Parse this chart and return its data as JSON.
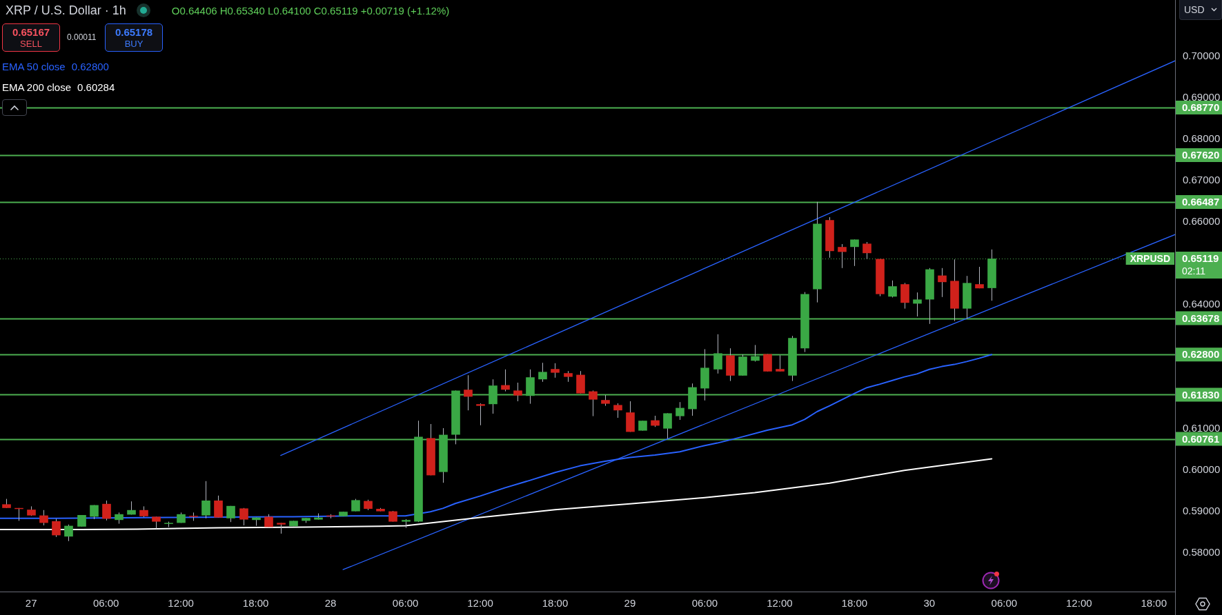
{
  "chart_data": {
    "type": "candlestick",
    "title": "XRP / U.S. Dollar · 1h",
    "subtitle": "O0.64406 H0.65340 L0.64100 C0.65119 +0.00719 (+1.12%)",
    "x": [
      "--09-26T22:00",
      "--09-26T23:00",
      "--09-27T00:00",
      "--09-27T01:00",
      "--09-27T02:00",
      "--09-27T03:00",
      "--09-27T04:00",
      "--09-27T05:00",
      "--09-27T06:00",
      "--09-27T07:00",
      "--09-27T08:00",
      "--09-27T09:00",
      "--09-27T10:00",
      "--09-27T11:00",
      "--09-27T12:00",
      "--09-27T13:00",
      "--09-27T14:00",
      "--09-27T15:00",
      "--09-27T16:00",
      "--09-27T17:00",
      "--09-27T18:00",
      "--09-27T19:00",
      "--09-27T20:00",
      "--09-27T21:00",
      "--09-27T22:00",
      "--09-27T23:00",
      "--09-28T00:00",
      "--09-28T01:00",
      "--09-28T02:00",
      "--09-28T03:00",
      "--09-28T04:00",
      "--09-28T05:00",
      "--09-28T06:00",
      "--09-28T07:00",
      "--09-28T08:00",
      "--09-28T09:00",
      "--09-28T10:00",
      "--09-28T11:00",
      "--09-28T12:00",
      "--09-28T13:00",
      "--09-28T14:00",
      "--09-28T15:00",
      "--09-28T16:00",
      "--09-28T17:00",
      "--09-28T18:00",
      "--09-28T19:00",
      "--09-28T20:00",
      "--09-28T21:00",
      "--09-28T22:00",
      "--09-28T23:00",
      "--09-29T00:00",
      "--09-29T01:00",
      "--09-29T02:00",
      "--09-29T03:00",
      "--09-29T04:00",
      "--09-29T05:00",
      "--09-29T06:00",
      "--09-29T07:00",
      "--09-29T08:00",
      "--09-29T09:00",
      "--09-29T10:00",
      "--09-29T11:00",
      "--09-29T12:00",
      "--09-29T13:00",
      "--09-29T14:00",
      "--09-29T15:00",
      "--09-29T16:00",
      "--09-29T17:00",
      "--09-29T18:00",
      "--09-29T19:00",
      "--09-29T20:00",
      "--09-29T21:00",
      "--09-29T22:00",
      "--09-29T23:00",
      "--09-30T00:00",
      "--09-30T01:00",
      "--09-30T02:00",
      "--09-30T03:00",
      "--09-30T04:00",
      "--09-30T05:00"
    ],
    "ohlc": [
      [
        0.5918,
        0.5931,
        0.5909,
        0.5909
      ],
      [
        0.5909,
        0.5909,
        0.5878,
        0.5907
      ],
      [
        0.5905,
        0.5913,
        0.589,
        0.5891
      ],
      [
        0.5891,
        0.5904,
        0.5867,
        0.5873
      ],
      [
        0.5877,
        0.5883,
        0.5839,
        0.5843
      ],
      [
        0.584,
        0.5869,
        0.5829,
        0.5866
      ],
      [
        0.5864,
        0.5892,
        0.5864,
        0.5892
      ],
      [
        0.5888,
        0.5916,
        0.5882,
        0.5916
      ],
      [
        0.5919,
        0.5927,
        0.5879,
        0.5883
      ],
      [
        0.588,
        0.5898,
        0.5871,
        0.5894
      ],
      [
        0.5893,
        0.5925,
        0.5893,
        0.5904
      ],
      [
        0.5904,
        0.5913,
        0.5887,
        0.5889
      ],
      [
        0.5888,
        0.5888,
        0.5859,
        0.5876
      ],
      [
        0.5872,
        0.5876,
        0.5863,
        0.5873
      ],
      [
        0.5873,
        0.5898,
        0.5873,
        0.5894
      ],
      [
        0.589,
        0.5898,
        0.5878,
        0.5889
      ],
      [
        0.5891,
        0.5974,
        0.5884,
        0.5927
      ],
      [
        0.5927,
        0.5939,
        0.5886,
        0.5886
      ],
      [
        0.5884,
        0.5914,
        0.5875,
        0.5914
      ],
      [
        0.5908,
        0.5909,
        0.5867,
        0.5881
      ],
      [
        0.588,
        0.5886,
        0.5866,
        0.5886
      ],
      [
        0.5888,
        0.5894,
        0.5863,
        0.5863
      ],
      [
        0.5873,
        0.5873,
        0.5847,
        0.5869
      ],
      [
        0.5865,
        0.5878,
        0.5865,
        0.5878
      ],
      [
        0.5878,
        0.5885,
        0.5873,
        0.5885
      ],
      [
        0.5881,
        0.5896,
        0.5881,
        0.5886
      ],
      [
        0.5891,
        0.5894,
        0.5884,
        0.589
      ],
      [
        0.5889,
        0.59,
        0.5889,
        0.59
      ],
      [
        0.5901,
        0.5931,
        0.5901,
        0.5928
      ],
      [
        0.5926,
        0.5929,
        0.5904,
        0.5907
      ],
      [
        0.5907,
        0.5909,
        0.5901,
        0.5901
      ],
      [
        0.5901,
        0.5902,
        0.5876,
        0.5876
      ],
      [
        0.5876,
        0.5882,
        0.5861,
        0.588
      ],
      [
        0.5876,
        0.612,
        0.5875,
        0.6081
      ],
      [
        0.6078,
        0.6112,
        0.5988,
        0.5988
      ],
      [
        0.5996,
        0.6102,
        0.597,
        0.6086
      ],
      [
        0.6086,
        0.6193,
        0.6063,
        0.6193
      ],
      [
        0.6195,
        0.623,
        0.6145,
        0.6178
      ],
      [
        0.616,
        0.6162,
        0.6109,
        0.6156
      ],
      [
        0.616,
        0.622,
        0.6137,
        0.6205
      ],
      [
        0.6206,
        0.6244,
        0.6191,
        0.6195
      ],
      [
        0.6193,
        0.6212,
        0.6167,
        0.6181
      ],
      [
        0.618,
        0.6244,
        0.6161,
        0.6225
      ],
      [
        0.622,
        0.626,
        0.6214,
        0.6238
      ],
      [
        0.6245,
        0.6259,
        0.6224,
        0.6236
      ],
      [
        0.6235,
        0.624,
        0.6214,
        0.6226
      ],
      [
        0.6231,
        0.624,
        0.6186,
        0.6186
      ],
      [
        0.6191,
        0.6193,
        0.6131,
        0.6171
      ],
      [
        0.617,
        0.6182,
        0.6156,
        0.6161
      ],
      [
        0.6158,
        0.6162,
        0.6127,
        0.6145
      ],
      [
        0.614,
        0.6167,
        0.6093,
        0.6093
      ],
      [
        0.6096,
        0.612,
        0.6096,
        0.612
      ],
      [
        0.6121,
        0.6132,
        0.6105,
        0.6108
      ],
      [
        0.6101,
        0.6138,
        0.6077,
        0.6138
      ],
      [
        0.6131,
        0.6165,
        0.6122,
        0.6151
      ],
      [
        0.6148,
        0.621,
        0.6132,
        0.6201
      ],
      [
        0.6198,
        0.6293,
        0.6169,
        0.6248
      ],
      [
        0.6244,
        0.6329,
        0.6234,
        0.6283
      ],
      [
        0.6278,
        0.6295,
        0.6216,
        0.6229
      ],
      [
        0.6229,
        0.628,
        0.6229,
        0.6275
      ],
      [
        0.6265,
        0.6303,
        0.6263,
        0.6276
      ],
      [
        0.6281,
        0.6281,
        0.6239,
        0.6239
      ],
      [
        0.6245,
        0.6278,
        0.6239,
        0.6239
      ],
      [
        0.6229,
        0.6325,
        0.6216,
        0.632
      ],
      [
        0.6295,
        0.6431,
        0.6286,
        0.6426
      ],
      [
        0.6438,
        0.6649,
        0.6406,
        0.6596
      ],
      [
        0.6605,
        0.6612,
        0.6514,
        0.653
      ],
      [
        0.654,
        0.6547,
        0.6489,
        0.6528
      ],
      [
        0.654,
        0.6558,
        0.6494,
        0.6558
      ],
      [
        0.6548,
        0.6552,
        0.6511,
        0.6525
      ],
      [
        0.6511,
        0.6511,
        0.6421,
        0.6426
      ],
      [
        0.642,
        0.6459,
        0.6418,
        0.6445
      ],
      [
        0.645,
        0.6453,
        0.6391,
        0.6405
      ],
      [
        0.6403,
        0.643,
        0.6372,
        0.6413
      ],
      [
        0.6413,
        0.6489,
        0.6354,
        0.6486
      ],
      [
        0.6471,
        0.6489,
        0.6419,
        0.6455
      ],
      [
        0.6458,
        0.651,
        0.6361,
        0.6391
      ],
      [
        0.6391,
        0.647,
        0.6367,
        0.6453
      ],
      [
        0.645,
        0.6492,
        0.644,
        0.644
      ],
      [
        0.64406,
        0.6534,
        0.641,
        0.65119
      ]
    ],
    "colors": [
      "#d0211b",
      "#d0211b",
      "#d0211b",
      "#d0211b",
      "#d0211b",
      "#3aa845",
      "#3aa845",
      "#3aa845",
      "#d0211b",
      "#3aa845",
      "#3aa845",
      "#d0211b",
      "#d0211b",
      "#3aa845",
      "#3aa845",
      "#d0211b",
      "#3aa845",
      "#d0211b",
      "#3aa845",
      "#d0211b",
      "#3aa845",
      "#d0211b",
      "#d0211b",
      "#3aa845",
      "#3aa845",
      "#3aa845",
      "#d0211b",
      "#3aa845",
      "#3aa845",
      "#d0211b",
      "#d0211b",
      "#d0211b",
      "#3aa845",
      "#3aa845",
      "#d0211b",
      "#3aa845",
      "#3aa845",
      "#d0211b",
      "#d0211b",
      "#3aa845",
      "#d0211b",
      "#d0211b",
      "#3aa845",
      "#3aa845",
      "#d0211b",
      "#d0211b",
      "#d0211b",
      "#d0211b",
      "#d0211b",
      "#d0211b",
      "#d0211b",
      "#3aa845",
      "#d0211b",
      "#3aa845",
      "#3aa845",
      "#3aa845",
      "#3aa845",
      "#3aa845",
      "#d0211b",
      "#3aa845",
      "#3aa845",
      "#d0211b",
      "#d0211b",
      "#3aa845",
      "#3aa845",
      "#3aa845",
      "#d0211b",
      "#d0211b",
      "#3aa845",
      "#d0211b",
      "#d0211b",
      "#3aa845",
      "#d0211b",
      "#3aa845",
      "#3aa845",
      "#d0211b",
      "#d0211b",
      "#3aa845",
      "#d0211b",
      "#3aa845"
    ],
    "series": [
      {
        "name": "EMA 50 close",
        "type": "line",
        "color": "#2962ff",
        "x": [
          "--09-26T21:30",
          "--09-27T02:00",
          "--09-27T11:00",
          "--09-27T20:00",
          "--09-27T21:00",
          "--09-28T02:00",
          "--09-28T06:00",
          "--09-28T08:00",
          "--09-28T09:00",
          "--09-28T10:00",
          "--09-28T12:00",
          "--09-28T14:00",
          "--09-28T16:00",
          "--09-28T18:00",
          "--09-28T20:00",
          "--09-28T22:00",
          "--09-29T00:00",
          "--09-29T02:00",
          "--09-29T04:00",
          "--09-29T06:00",
          "--09-29T07:00",
          "--09-29T09:00",
          "--09-29T11:00",
          "--09-29T13:00",
          "--09-29T14:00",
          "--09-29T15:00",
          "--09-29T16:00",
          "--09-29T17:00",
          "--09-29T18:00",
          "--09-29T19:00",
          "--09-29T20:00",
          "--09-29T21:00",
          "--09-29T22:00",
          "--09-29T23:00",
          "--09-30T00:00",
          "--09-30T01:00",
          "--09-30T02:00",
          "--09-30T03:00",
          "--09-30T04:00",
          "--09-30T05:00"
        ],
        "values": [
          0.5884,
          0.5884,
          0.5886,
          0.5888,
          0.5888,
          0.589,
          0.589,
          0.59,
          0.5908,
          0.592,
          0.5938,
          0.5958,
          0.5976,
          0.5995,
          0.6011,
          0.6022,
          0.6031,
          0.6037,
          0.6045,
          0.606,
          0.6066,
          0.6081,
          0.6097,
          0.611,
          0.6123,
          0.6142,
          0.6156,
          0.6171,
          0.6186,
          0.62,
          0.6208,
          0.6217,
          0.6226,
          0.6233,
          0.6244,
          0.6251,
          0.6256,
          0.6263,
          0.6271,
          0.628
        ]
      },
      {
        "name": "EMA 200 close",
        "type": "line",
        "color": "#ffffff",
        "x": [
          "--09-26T21:30",
          "--09-27T04:00",
          "--09-27T08:30",
          "--09-27T15:00",
          "--09-27T22:00",
          "--09-28T04:00",
          "--09-28T06:00",
          "--09-28T08:00",
          "--09-28T12:00",
          "--09-28T18:00",
          "--09-29T00:00",
          "--09-29T06:00",
          "--09-29T10:00",
          "--09-29T16:00",
          "--09-29T22:00",
          "--09-30T05:00"
        ],
        "values": [
          0.5857,
          0.5857,
          0.5858,
          0.5861,
          0.5863,
          0.5865,
          0.5866,
          0.5873,
          0.5886,
          0.5905,
          0.5919,
          0.5934,
          0.5946,
          0.5969,
          0.6,
          0.6028
        ]
      },
      {
        "type": "line",
        "color": "#2962ff",
        "x": [
          "--09-27T20:00",
          "--09-30T19:42"
        ],
        "values": [
          0.6036,
          0.699
        ]
      },
      {
        "type": "line",
        "color": "#2962ff",
        "x": [
          "--09-28T01:00",
          "--09-30T19:42"
        ],
        "values": [
          0.576,
          0.657
        ]
      }
    ],
    "xlim": [
      "--09-26T21:30",
      "--09-30T19:42"
    ],
    "xticks": [
      {
        "value": "--09-27T00:00",
        "label": "27"
      },
      {
        "value": "--09-27T06:00",
        "label": "06:00"
      },
      {
        "value": "--09-27T12:00",
        "label": "12:00"
      },
      {
        "value": "--09-27T18:00",
        "label": "18:00"
      },
      {
        "value": "--09-28T00:00",
        "label": "28"
      },
      {
        "value": "--09-28T06:00",
        "label": "06:00"
      },
      {
        "value": "--09-28T12:00",
        "label": "12:00"
      },
      {
        "value": "--09-28T18:00",
        "label": "18:00"
      },
      {
        "value": "--09-29T00:00",
        "label": "29"
      },
      {
        "value": "--09-29T06:00",
        "label": "06:00"
      },
      {
        "value": "--09-29T12:00",
        "label": "12:00"
      },
      {
        "value": "--09-29T18:00",
        "label": "18:00"
      },
      {
        "value": "--09-30T00:00",
        "label": "30"
      },
      {
        "value": "--09-30T06:00",
        "label": "06:00"
      },
      {
        "value": "--09-30T12:00",
        "label": "12:00"
      },
      {
        "value": "--09-30T18:00",
        "label": "18:00"
      }
    ],
    "ylim": [
      0.5707,
      0.7137
    ],
    "yticks": [
      {
        "value": 0.58,
        "label": "0.58000"
      },
      {
        "value": 0.59,
        "label": "0.59000"
      },
      {
        "value": 0.6,
        "label": "0.60000"
      },
      {
        "value": 0.61,
        "label": "0.61000"
      },
      {
        "value": 0.64,
        "label": "0.64000"
      },
      {
        "value": 0.66,
        "label": "0.66000"
      },
      {
        "value": 0.67,
        "label": "0.67000"
      },
      {
        "value": 0.68,
        "label": "0.68000"
      },
      {
        "value": 0.69,
        "label": "0.69000"
      },
      {
        "value": 0.7,
        "label": "0.70000"
      }
    ],
    "ref_lines": [
      {
        "axis": "y",
        "value": 0.6877,
        "label": "0.68770",
        "color": "#4caf50"
      },
      {
        "axis": "y",
        "value": 0.6762,
        "label": "0.67620",
        "color": "#4caf50"
      },
      {
        "axis": "y",
        "value": 0.66487,
        "label": "0.66487",
        "color": "#4caf50"
      },
      {
        "axis": "y",
        "value": 0.63678,
        "label": "0.63678",
        "color": "#4caf50"
      },
      {
        "axis": "y",
        "value": 0.628,
        "label": "0.62800",
        "color": "#4caf50"
      },
      {
        "axis": "y",
        "value": 0.6183,
        "label": "0.61830",
        "color": "#4caf50"
      },
      {
        "axis": "y",
        "value": 0.60761,
        "label": "0.60761",
        "color": "#4caf50"
      },
      {
        "axis": "y",
        "value": 0.65119,
        "label": "0.65119",
        "color": "#4caf50",
        "line_style": "dotted"
      }
    ],
    "annotations": [
      "0.65167",
      "SELL",
      "0.00011",
      "0.65178",
      "BUY",
      "USD",
      "0.62800",
      "0.60284",
      "02:11",
      {
        "text": "XRPUSD",
        "y": 0.65119
      }
    ],
    "legend": "top left"
  }
}
